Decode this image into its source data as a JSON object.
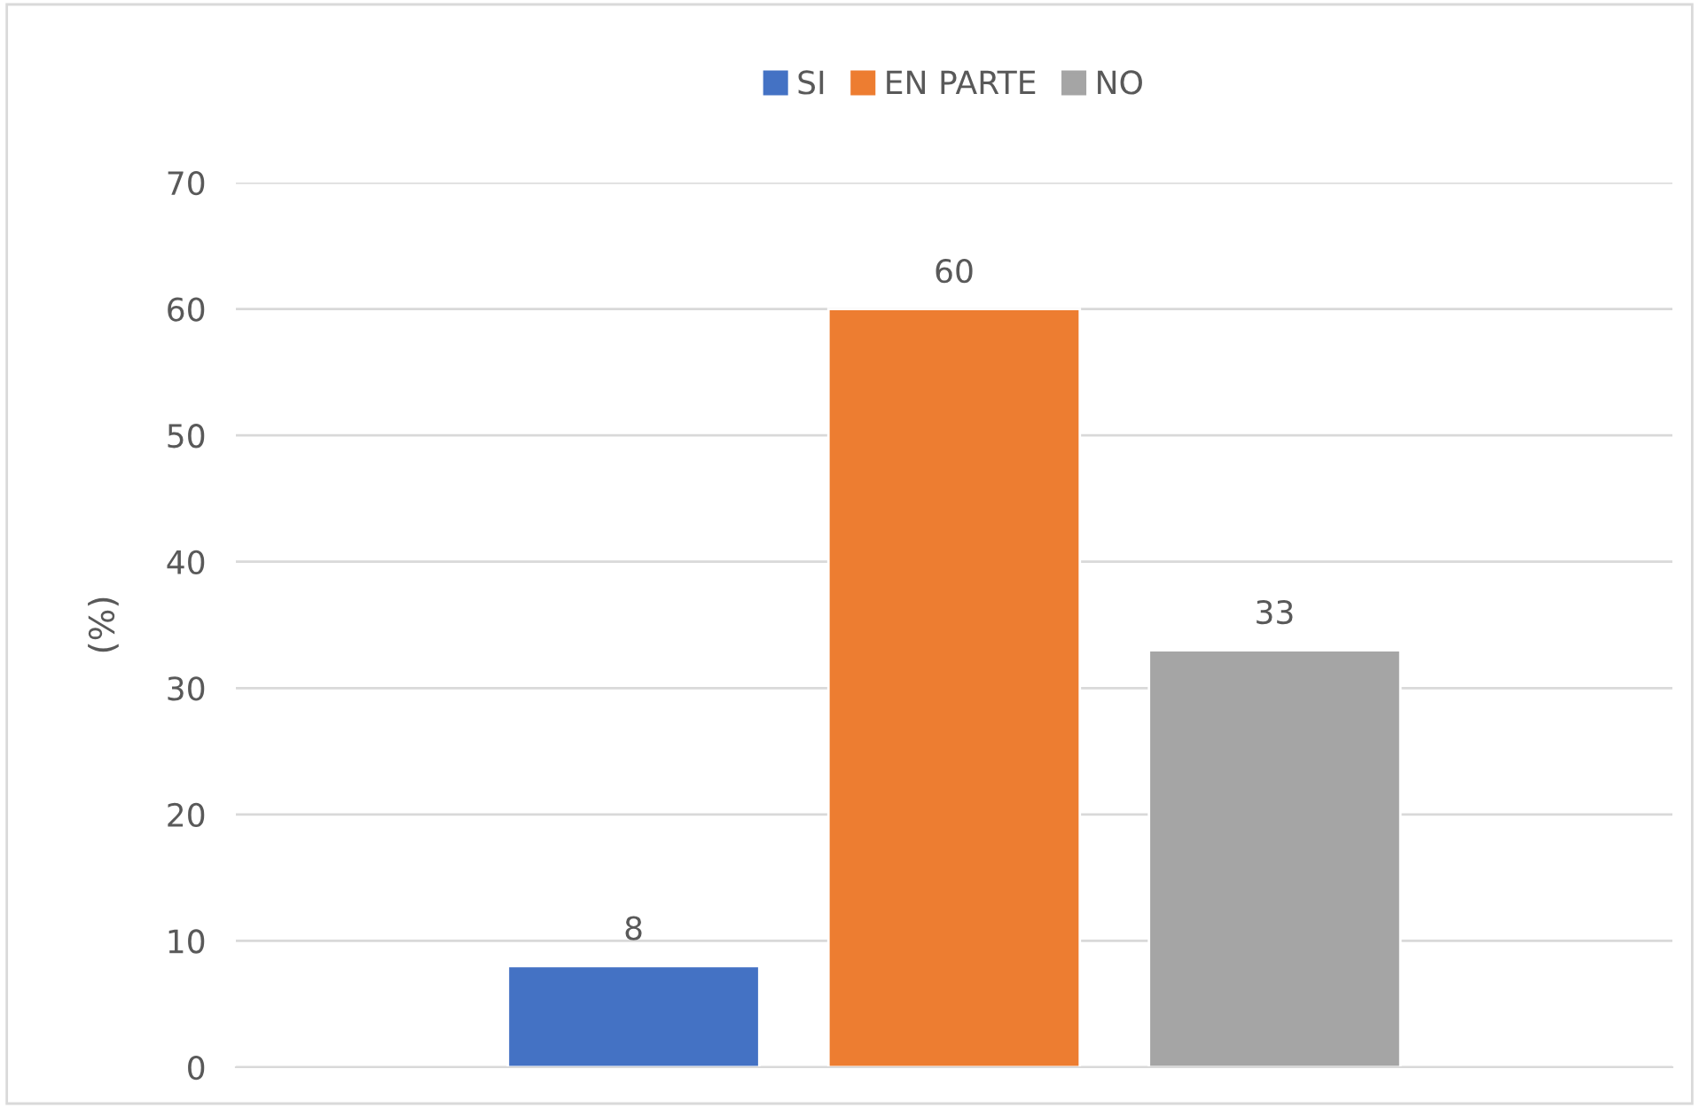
{
  "chart_data": {
    "type": "bar",
    "ylabel": "(%)",
    "categories": [
      null
    ],
    "series": [
      {
        "name": "SI",
        "color": "#4472c4",
        "values": [
          8
        ]
      },
      {
        "name": "EN PARTE",
        "color": "#ed7d31",
        "values": [
          60
        ]
      },
      {
        "name": "NO",
        "color": "#a5a5a5",
        "values": [
          33
        ]
      }
    ],
    "ylim": [
      0,
      70
    ],
    "yticks": [
      0,
      10,
      20,
      30,
      40,
      50,
      60,
      70
    ],
    "grid": "y",
    "legend": "top",
    "data_labels": true
  }
}
